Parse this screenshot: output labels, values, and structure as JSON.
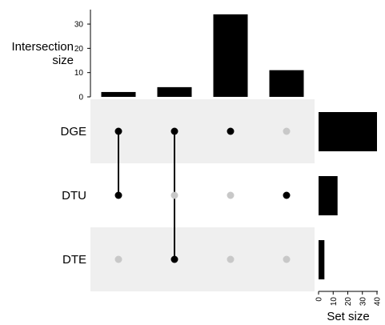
{
  "chart_data": {
    "type": "upset",
    "sets": [
      "DGE",
      "DTU",
      "DTE"
    ],
    "set_sizes": [
      40,
      13,
      4
    ],
    "intersections": [
      {
        "members": [
          "DGE",
          "DTU"
        ],
        "size": 2
      },
      {
        "members": [
          "DGE",
          "DTE"
        ],
        "size": 4
      },
      {
        "members": [
          "DGE"
        ],
        "size": 34
      },
      {
        "members": [
          "DTU"
        ],
        "size": 11
      }
    ],
    "intersection_axis": {
      "label_line1": "Intersection",
      "label_line2": "size",
      "ticks": [
        0,
        10,
        20,
        30
      ],
      "ylim": [
        0,
        36
      ]
    },
    "set_size_axis": {
      "label": "Set size",
      "ticks": [
        0,
        10,
        20,
        30,
        40
      ],
      "xlim": [
        0,
        40
      ]
    },
    "colors": {
      "bar": "#000000",
      "dot_active": "#000000",
      "dot_inactive": "#c8c8c8",
      "row_shade": "#efefef"
    }
  }
}
